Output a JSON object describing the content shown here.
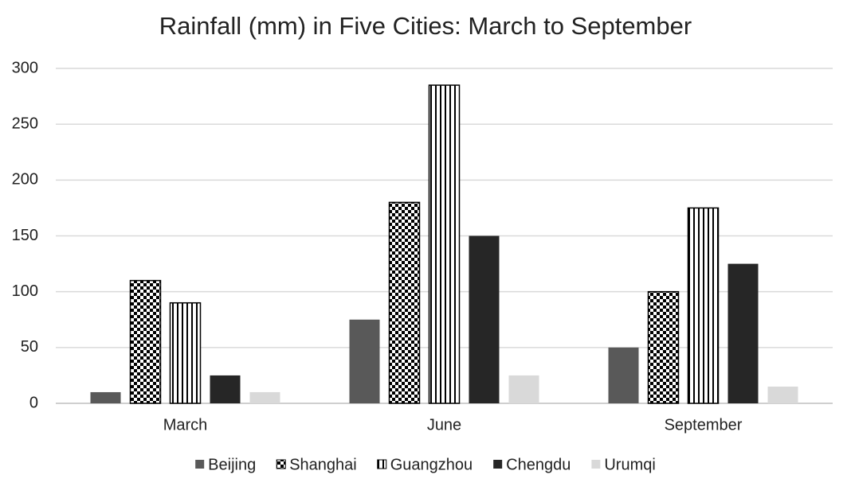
{
  "chart_data": {
    "type": "bar",
    "title": "Rainfall (mm) in Five Cities: March to September",
    "categories": [
      "March",
      "June",
      "September"
    ],
    "series": [
      {
        "name": "Beijing",
        "color": "#595959",
        "pattern": "solid",
        "values": [
          10,
          75,
          50
        ]
      },
      {
        "name": "Shanghai",
        "color": "#000000",
        "pattern": "checker",
        "values": [
          110,
          180,
          100
        ]
      },
      {
        "name": "Guangzhou",
        "color": "#000000",
        "pattern": "vertical",
        "values": [
          90,
          285,
          175
        ]
      },
      {
        "name": "Chengdu",
        "color": "#262626",
        "pattern": "solid",
        "values": [
          25,
          150,
          125
        ]
      },
      {
        "name": "Urumqi",
        "color": "#d9d9d9",
        "pattern": "solid",
        "values": [
          10,
          25,
          15
        ]
      }
    ],
    "ylim": [
      0,
      300
    ],
    "yticks": [
      0,
      50,
      100,
      150,
      200,
      250,
      300
    ],
    "grid": true,
    "legend": "bottom"
  }
}
